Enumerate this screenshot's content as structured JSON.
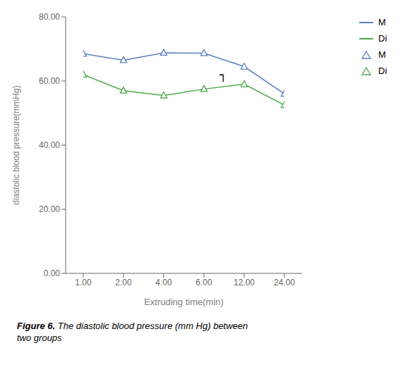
{
  "chart_data": {
    "type": "line",
    "xlabel": "Extruding time(min)",
    "ylabel": "diastolic blood pressure(mmHg)",
    "categories": [
      "1.00",
      "2.00",
      "4.00",
      "6.00",
      "12.00",
      "24.00"
    ],
    "series": [
      {
        "name": "M",
        "color": "#5b7fbe",
        "marker": "triangle",
        "values": [
          68.5,
          66.5,
          68.8,
          68.7,
          64.5,
          56.0
        ]
      },
      {
        "name": "Di",
        "color": "#4aaa4a",
        "marker": "triangle",
        "values": [
          62.0,
          57.0,
          55.5,
          57.5,
          59.0,
          52.5
        ]
      }
    ],
    "ylim": [
      0,
      80
    ],
    "yticks": [
      {
        "value": 0,
        "label": "0.00"
      },
      {
        "value": 20,
        "label": "20.00"
      },
      {
        "value": 40,
        "label": "40.00"
      },
      {
        "value": 60,
        "label": "60.00"
      },
      {
        "value": 80,
        "label": "80.00"
      }
    ],
    "grid": false,
    "legend": "right",
    "annotations": [
      {
        "text": "┐",
        "x": 3.3,
        "y": 62.0
      }
    ],
    "caption": [
      "Figure 6.",
      " The diastolic blood pressure (mm Hg) between\ntwo groups"
    ]
  }
}
